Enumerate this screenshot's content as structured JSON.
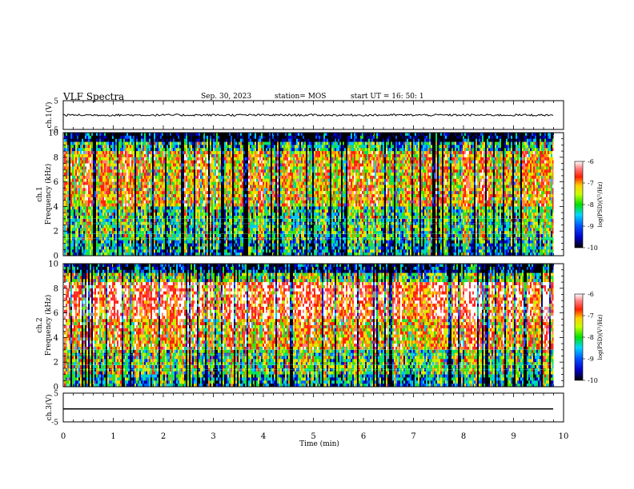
{
  "header": {
    "title": "VLF Spectra",
    "date": "Sep. 30, 2023",
    "station": "station= MOS",
    "start": "start  UT =   16: 50: 1"
  },
  "chart_data": [
    {
      "type": "line",
      "panel": "ch1-waveform",
      "ylabel": "ch.1(V)",
      "ylim": [
        -5,
        5
      ],
      "yticks": [
        "5",
        "-5"
      ],
      "description_series": [
        {
          "x": [
            0,
            9.8
          ],
          "y": [
            0,
            0
          ]
        }
      ]
    },
    {
      "type": "heatmap",
      "panel": "ch1-spectrogram",
      "ylabel": "ch.1\nFrequency (kHz)",
      "ylabel_lines": [
        "ch.1",
        "Frequency (kHz)"
      ],
      "ylim": [
        0,
        10
      ],
      "yticks": [
        "0",
        "2",
        "4",
        "6",
        "8",
        "10"
      ],
      "xlim": [
        0,
        10
      ],
      "colorbar": {
        "label": "log(PSD)(V²/Hz)",
        "range": [
          -10,
          -6
        ],
        "ticks": [
          "-6",
          "-7",
          "-8",
          "-9",
          "-10"
        ]
      }
    },
    {
      "type": "heatmap",
      "panel": "ch2-spectrogram",
      "ylabel": "ch.2\nFrequency (kHz)",
      "ylabel_lines": [
        "ch.2",
        "Frequency (kHz)"
      ],
      "ylim": [
        0,
        10
      ],
      "yticks": [
        "0",
        "2",
        "4",
        "6",
        "8",
        "10"
      ],
      "xlim": [
        0,
        10
      ],
      "colorbar": {
        "label": "log(PSD)(V²/Hz)",
        "range": [
          -10,
          -6
        ],
        "ticks": [
          "-6",
          "-7",
          "-8",
          "-9",
          "-10"
        ]
      }
    },
    {
      "type": "line",
      "panel": "ch3-waveform",
      "ylabel": "ch.3(V)",
      "ylim": [
        -5,
        5
      ],
      "yticks": [
        "5",
        "-5"
      ],
      "description_series": [
        {
          "x": [
            0,
            9.8
          ],
          "y": [
            -0.5,
            -0.5
          ]
        }
      ]
    }
  ],
  "xaxis": {
    "label": "Time  (min)",
    "range": [
      0,
      10
    ],
    "ticks": [
      "0",
      "1",
      "2",
      "3",
      "4",
      "5",
      "6",
      "7",
      "8",
      "9",
      "10"
    ]
  }
}
